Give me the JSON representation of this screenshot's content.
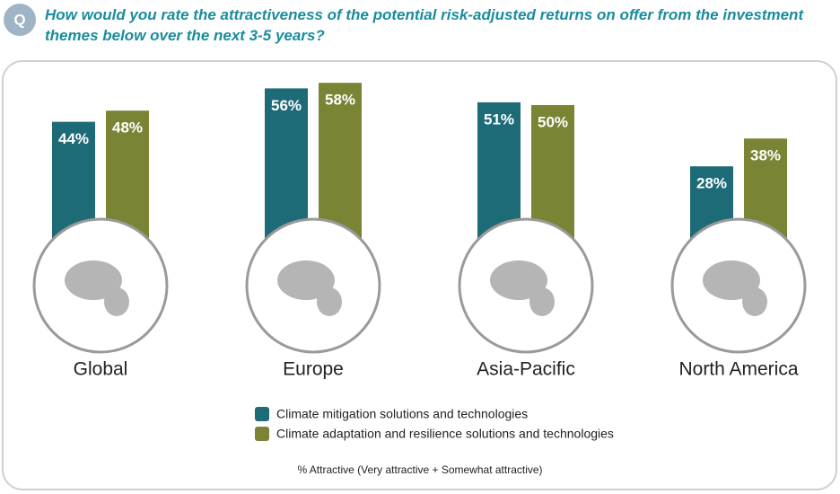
{
  "badge": "Q",
  "title": "How would you rate the attractiveness of the potential risk-adjusted returns on offer from the investment themes below over the next 3-5 years?",
  "chart_data": {
    "type": "bar",
    "categories": [
      "Global",
      "Europe",
      "Asia-Pacific",
      "North America"
    ],
    "series": [
      {
        "name": "Climate mitigation solutions and technologies",
        "color": "#1e6b78",
        "values": [
          44,
          56,
          51,
          28
        ],
        "value_labels": [
          "44%",
          "56%",
          "51%",
          "28%"
        ]
      },
      {
        "name": "Climate adaptation and resilience solutions and technologies",
        "color": "#7a8434",
        "values": [
          48,
          58,
          50,
          38
        ],
        "value_labels": [
          "48%",
          "58%",
          "50%",
          "38%"
        ]
      }
    ],
    "footnote": "% Attractive (Very attractive + Somewhat attractive)"
  }
}
